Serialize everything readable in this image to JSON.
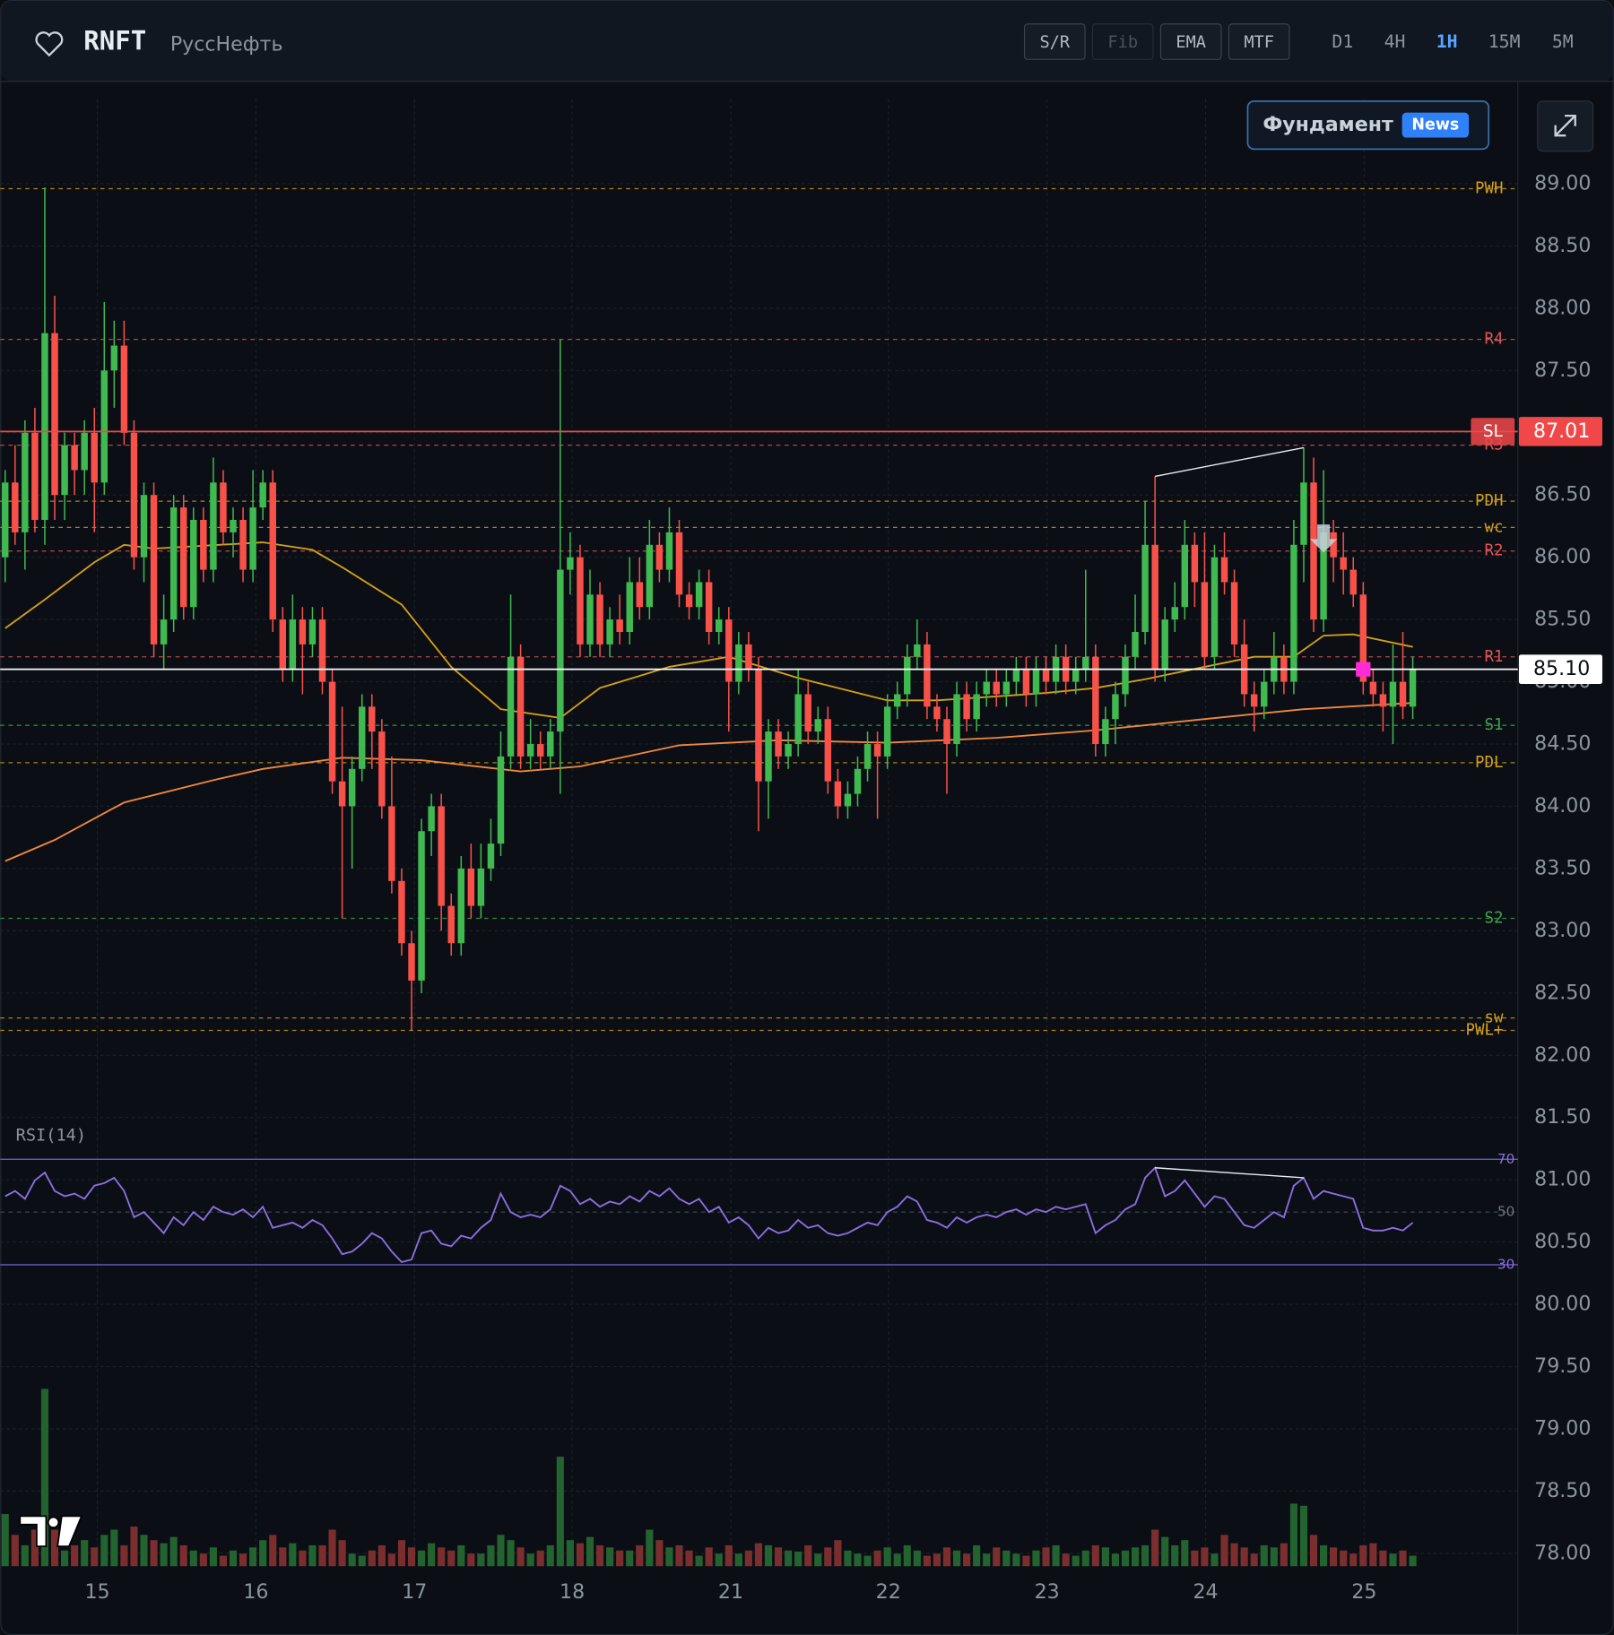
{
  "header": {
    "symbol": "RNFT",
    "name": "РуссНефть",
    "tools": [
      "S/R",
      "Fib",
      "EMA",
      "MTF"
    ],
    "disabled_tools": [
      "Fib"
    ],
    "timeframes": [
      "D1",
      "4H",
      "1H",
      "15M",
      "5M"
    ],
    "active_timeframe": "1H",
    "fundament": {
      "label": "Фундамент",
      "badge": "News"
    }
  },
  "chart_data": {
    "type": "candlestick",
    "xlim": [
      -0.5,
      152.6
    ],
    "xticks": [
      {
        "value": 9.3,
        "label": "15"
      },
      {
        "value": 25.3,
        "label": "16"
      },
      {
        "value": 41.3,
        "label": "17"
      },
      {
        "value": 57.2,
        "label": "18"
      },
      {
        "value": 73.2,
        "label": "21"
      },
      {
        "value": 89.1,
        "label": "22"
      },
      {
        "value": 105.1,
        "label": "23"
      },
      {
        "value": 121.1,
        "label": "24"
      },
      {
        "value": 137.1,
        "label": "25"
      }
    ],
    "ylim": [
      77.88,
      89.68
    ],
    "yticks": [
      {
        "value": 78,
        "label": "78.00"
      },
      {
        "value": 78.5,
        "label": "78.50"
      },
      {
        "value": 79,
        "label": "79.00"
      },
      {
        "value": 79.5,
        "label": "79.50"
      },
      {
        "value": 80,
        "label": "80.00"
      },
      {
        "value": 80.5,
        "label": "80.50"
      },
      {
        "value": 81,
        "label": "81.00"
      },
      {
        "value": 81.5,
        "label": "81.50"
      },
      {
        "value": 82,
        "label": "82.00"
      },
      {
        "value": 82.5,
        "label": "82.50"
      },
      {
        "value": 83,
        "label": "83.00"
      },
      {
        "value": 83.5,
        "label": "83.50"
      },
      {
        "value": 84,
        "label": "84.00"
      },
      {
        "value": 84.5,
        "label": "84.50"
      },
      {
        "value": 85,
        "label": "85.00"
      },
      {
        "value": 85.5,
        "label": "85.50"
      },
      {
        "value": 86,
        "label": "86.00"
      },
      {
        "value": 86.5,
        "label": "86.50"
      },
      {
        "value": 87,
        "label": "87.00"
      },
      {
        "value": 87.5,
        "label": "87.50"
      },
      {
        "value": 88,
        "label": "88.00"
      },
      {
        "value": 88.5,
        "label": "88.50"
      },
      {
        "value": 89,
        "label": "89.00"
      }
    ],
    "grid": true,
    "up_color": "#3fb950",
    "down_color": "#f85149",
    "ohlc": [
      [
        86.0,
        86.7,
        85.8,
        86.6
      ],
      [
        86.6,
        86.9,
        86.1,
        86.2
      ],
      [
        86.2,
        87.1,
        85.9,
        87.0
      ],
      [
        87.0,
        87.2,
        86.2,
        86.3
      ],
      [
        86.3,
        88.97,
        86.1,
        87.8
      ],
      [
        87.8,
        88.1,
        86.3,
        86.5
      ],
      [
        86.5,
        87.0,
        86.3,
        86.9
      ],
      [
        86.9,
        87.0,
        86.5,
        86.7
      ],
      [
        86.7,
        87.1,
        86.5,
        87.0
      ],
      [
        87.0,
        87.2,
        86.2,
        86.6
      ],
      [
        86.6,
        88.05,
        86.5,
        87.5
      ],
      [
        87.5,
        87.9,
        87.2,
        87.7
      ],
      [
        87.7,
        87.9,
        86.9,
        87.0
      ],
      [
        87.0,
        87.1,
        85.9,
        86.0
      ],
      [
        86.0,
        86.6,
        85.8,
        86.5
      ],
      [
        86.5,
        86.6,
        85.2,
        85.3
      ],
      [
        85.3,
        85.7,
        85.1,
        85.5
      ],
      [
        85.5,
        86.5,
        85.4,
        86.4
      ],
      [
        86.4,
        86.5,
        85.5,
        85.6
      ],
      [
        85.6,
        86.4,
        85.5,
        86.3
      ],
      [
        86.3,
        86.4,
        85.8,
        85.9
      ],
      [
        85.9,
        86.8,
        85.8,
        86.6
      ],
      [
        86.6,
        86.7,
        86.1,
        86.2
      ],
      [
        86.2,
        86.4,
        86.0,
        86.3
      ],
      [
        86.3,
        86.4,
        85.8,
        85.9
      ],
      [
        85.9,
        86.7,
        85.8,
        86.4
      ],
      [
        86.4,
        86.7,
        86.3,
        86.6
      ],
      [
        86.6,
        86.7,
        85.4,
        85.5
      ],
      [
        85.5,
        85.6,
        85.0,
        85.1
      ],
      [
        85.1,
        85.7,
        85.0,
        85.5
      ],
      [
        85.5,
        85.6,
        84.9,
        85.3
      ],
      [
        85.3,
        85.6,
        85.2,
        85.5
      ],
      [
        85.5,
        85.6,
        84.9,
        85.0
      ],
      [
        85.0,
        85.1,
        84.1,
        84.2
      ],
      [
        84.2,
        84.8,
        83.1,
        84.0
      ],
      [
        84.0,
        84.4,
        83.5,
        84.3
      ],
      [
        84.3,
        84.9,
        84.2,
        84.8
      ],
      [
        84.8,
        84.9,
        84.3,
        84.6
      ],
      [
        84.6,
        84.7,
        83.9,
        84.0
      ],
      [
        84.0,
        84.4,
        83.3,
        83.4
      ],
      [
        83.4,
        83.5,
        82.8,
        82.9
      ],
      [
        82.9,
        83.0,
        82.2,
        82.6
      ],
      [
        82.6,
        83.9,
        82.5,
        83.8
      ],
      [
        83.8,
        84.1,
        83.6,
        84.0
      ],
      [
        84.0,
        84.1,
        83.0,
        83.2
      ],
      [
        83.2,
        83.3,
        82.8,
        82.9
      ],
      [
        82.9,
        83.6,
        82.8,
        83.5
      ],
      [
        83.5,
        83.7,
        83.1,
        83.2
      ],
      [
        83.2,
        83.7,
        83.1,
        83.5
      ],
      [
        83.5,
        83.9,
        83.4,
        83.7
      ],
      [
        83.7,
        84.6,
        83.6,
        84.4
      ],
      [
        84.4,
        85.7,
        84.3,
        85.2
      ],
      [
        85.2,
        85.3,
        84.3,
        84.4
      ],
      [
        84.4,
        84.7,
        84.3,
        84.5
      ],
      [
        84.5,
        84.6,
        84.3,
        84.4
      ],
      [
        84.4,
        84.7,
        84.3,
        84.6
      ],
      [
        84.6,
        87.75,
        84.1,
        85.9
      ],
      [
        85.9,
        86.2,
        85.7,
        86.0
      ],
      [
        86.0,
        86.1,
        85.2,
        85.3
      ],
      [
        85.3,
        85.9,
        85.2,
        85.7
      ],
      [
        85.7,
        85.8,
        85.2,
        85.3
      ],
      [
        85.3,
        85.6,
        85.2,
        85.5
      ],
      [
        85.5,
        85.7,
        85.3,
        85.4
      ],
      [
        85.4,
        86.0,
        85.3,
        85.8
      ],
      [
        85.8,
        86.0,
        85.5,
        85.6
      ],
      [
        85.6,
        86.3,
        85.5,
        86.1
      ],
      [
        86.1,
        86.2,
        85.8,
        85.9
      ],
      [
        85.9,
        86.4,
        85.8,
        86.2
      ],
      [
        86.2,
        86.3,
        85.6,
        85.7
      ],
      [
        85.7,
        85.8,
        85.5,
        85.6
      ],
      [
        85.6,
        85.9,
        85.5,
        85.8
      ],
      [
        85.8,
        85.9,
        85.3,
        85.4
      ],
      [
        85.4,
        85.6,
        85.3,
        85.5
      ],
      [
        85.5,
        85.6,
        84.6,
        85.0
      ],
      [
        85.0,
        85.4,
        84.9,
        85.3
      ],
      [
        85.3,
        85.4,
        85.0,
        85.1
      ],
      [
        85.1,
        85.2,
        83.8,
        84.2
      ],
      [
        84.2,
        84.7,
        83.9,
        84.6
      ],
      [
        84.6,
        84.7,
        84.3,
        84.4
      ],
      [
        84.4,
        84.6,
        84.3,
        84.5
      ],
      [
        84.5,
        85.1,
        84.4,
        84.9
      ],
      [
        84.9,
        85.0,
        84.5,
        84.6
      ],
      [
        84.6,
        84.8,
        84.5,
        84.7
      ],
      [
        84.7,
        84.8,
        84.1,
        84.2
      ],
      [
        84.2,
        84.3,
        83.9,
        84.0
      ],
      [
        84.0,
        84.2,
        83.9,
        84.1
      ],
      [
        84.1,
        84.4,
        84.0,
        84.3
      ],
      [
        84.3,
        84.6,
        84.2,
        84.5
      ],
      [
        84.5,
        84.6,
        83.9,
        84.4
      ],
      [
        84.4,
        84.9,
        84.3,
        84.8
      ],
      [
        84.8,
        85.0,
        84.7,
        84.9
      ],
      [
        84.9,
        85.3,
        84.8,
        85.2
      ],
      [
        85.2,
        85.5,
        85.1,
        85.3
      ],
      [
        85.3,
        85.4,
        84.7,
        84.8
      ],
      [
        84.8,
        84.9,
        84.6,
        84.7
      ],
      [
        84.7,
        84.8,
        84.1,
        84.5
      ],
      [
        84.5,
        85.0,
        84.4,
        84.9
      ],
      [
        84.9,
        85.0,
        84.6,
        84.7
      ],
      [
        84.7,
        85.0,
        84.6,
        84.9
      ],
      [
        84.9,
        85.1,
        84.8,
        85.0
      ],
      [
        85.0,
        85.1,
        84.8,
        84.9
      ],
      [
        84.9,
        85.1,
        84.8,
        85.0
      ],
      [
        85.0,
        85.2,
        84.9,
        85.1
      ],
      [
        85.1,
        85.2,
        84.8,
        84.9
      ],
      [
        84.9,
        85.2,
        84.8,
        85.1
      ],
      [
        85.1,
        85.2,
        84.9,
        85.0
      ],
      [
        85.0,
        85.3,
        84.9,
        85.2
      ],
      [
        85.2,
        85.3,
        84.9,
        85.0
      ],
      [
        85.0,
        85.2,
        84.9,
        85.1
      ],
      [
        85.1,
        85.9,
        85.0,
        85.2
      ],
      [
        85.2,
        85.3,
        84.4,
        84.5
      ],
      [
        84.5,
        84.8,
        84.4,
        84.7
      ],
      [
        84.7,
        85.0,
        84.5,
        84.9
      ],
      [
        84.9,
        85.3,
        84.8,
        85.2
      ],
      [
        85.2,
        85.7,
        85.1,
        85.4
      ],
      [
        85.4,
        86.45,
        85.3,
        86.1
      ],
      [
        86.1,
        86.65,
        85.0,
        85.1
      ],
      [
        85.1,
        85.6,
        85.0,
        85.5
      ],
      [
        85.5,
        85.8,
        85.4,
        85.6
      ],
      [
        85.6,
        86.3,
        85.5,
        86.1
      ],
      [
        86.1,
        86.2,
        85.6,
        85.8
      ],
      [
        85.8,
        86.2,
        85.1,
        85.2
      ],
      [
        85.2,
        86.1,
        85.1,
        86.0
      ],
      [
        86.0,
        86.2,
        85.7,
        85.8
      ],
      [
        85.8,
        85.9,
        85.2,
        85.3
      ],
      [
        85.3,
        85.5,
        84.8,
        84.9
      ],
      [
        84.9,
        85.0,
        84.6,
        84.8
      ],
      [
        84.8,
        85.1,
        84.7,
        85.0
      ],
      [
        85.0,
        85.4,
        84.9,
        85.2
      ],
      [
        85.2,
        85.3,
        84.9,
        85.0
      ],
      [
        85.0,
        86.3,
        84.9,
        86.1
      ],
      [
        86.1,
        86.88,
        85.8,
        86.6
      ],
      [
        86.6,
        86.8,
        85.4,
        85.5
      ],
      [
        85.5,
        86.7,
        85.4,
        86.2
      ],
      [
        86.2,
        86.3,
        85.8,
        86.0
      ],
      [
        86.0,
        86.2,
        85.7,
        85.9
      ],
      [
        85.9,
        86.0,
        85.6,
        85.7
      ],
      [
        85.7,
        85.8,
        84.9,
        85.0
      ],
      [
        85.0,
        85.1,
        84.8,
        84.9
      ],
      [
        84.9,
        85.0,
        84.6,
        84.8
      ],
      [
        84.8,
        85.3,
        84.5,
        85.0
      ],
      [
        85.0,
        85.4,
        84.7,
        84.8
      ],
      [
        84.8,
        85.2,
        84.7,
        85.1
      ]
    ],
    "volume": [
      50,
      30,
      20,
      35,
      170,
      35,
      15,
      20,
      25,
      18,
      30,
      35,
      20,
      38,
      30,
      25,
      22,
      28,
      20,
      15,
      12,
      18,
      10,
      15,
      12,
      18,
      25,
      30,
      18,
      22,
      15,
      20,
      20,
      35,
      25,
      12,
      10,
      15,
      20,
      12,
      25,
      18,
      15,
      22,
      18,
      15,
      20,
      12,
      12,
      20,
      30,
      25,
      18,
      12,
      15,
      20,
      105,
      25,
      22,
      28,
      20,
      18,
      15,
      15,
      20,
      35,
      25,
      18,
      20,
      15,
      10,
      18,
      12,
      20,
      12,
      15,
      22,
      20,
      18,
      15,
      14,
      20,
      12,
      18,
      25,
      15,
      12,
      10,
      15,
      18,
      12,
      20,
      15,
      10,
      12,
      18,
      15,
      12,
      20,
      12,
      18,
      15,
      12,
      10,
      15,
      18,
      20,
      12,
      10,
      15,
      20,
      18,
      12,
      15,
      18,
      20,
      35,
      28,
      20,
      25,
      15,
      18,
      12,
      30,
      22,
      18,
      12,
      20,
      18,
      22,
      60,
      58,
      30,
      20,
      18,
      15,
      12,
      20,
      22,
      15,
      12,
      15,
      10
    ],
    "ema": [
      {
        "color": "#d4a017",
        "x": [
          0,
          4,
          9,
          12,
          15,
          26,
          31,
          34,
          40,
          45,
          50,
          56,
          60,
          67,
          73,
          80,
          84,
          89,
          94,
          105,
          110,
          115,
          121,
          126,
          130,
          133,
          136,
          142
        ],
        "values": [
          85.43,
          85.66,
          85.96,
          86.1,
          86.07,
          86.12,
          86.06,
          85.92,
          85.62,
          85.12,
          84.78,
          84.71,
          84.95,
          85.12,
          85.2,
          85.03,
          84.95,
          84.85,
          84.85,
          84.91,
          84.95,
          85.02,
          85.12,
          85.2,
          85.2,
          85.37,
          85.38,
          85.28
        ]
      },
      {
        "color": "#f0883e",
        "x": [
          0,
          5,
          12,
          21,
          26,
          34,
          42,
          52,
          58,
          68,
          78,
          89,
          100,
          110,
          121,
          131,
          142
        ],
        "values": [
          83.56,
          83.73,
          84.03,
          84.21,
          84.3,
          84.39,
          84.37,
          84.28,
          84.32,
          84.49,
          84.53,
          84.51,
          84.55,
          84.61,
          84.7,
          84.78,
          84.83
        ]
      }
    ],
    "levels": [
      {
        "label": "PWH",
        "value": 88.96,
        "color": "#d4a017"
      },
      {
        "label": "R4",
        "value": 87.75,
        "color": "#e05555"
      },
      {
        "label": "R3",
        "value": 86.9,
        "color": "#e05555"
      },
      {
        "label": "PDH",
        "value": 86.45,
        "color": "#d4a017"
      },
      {
        "label": "wc",
        "value": 86.24,
        "color": "#d4a017"
      },
      {
        "label": "R2",
        "value": 86.05,
        "color": "#e05555"
      },
      {
        "label": "R1",
        "value": 85.2,
        "color": "#e05555"
      },
      {
        "label": "S1",
        "value": 84.65,
        "color": "#3fa34d"
      },
      {
        "label": "PDL",
        "value": 84.35,
        "color": "#d4a017"
      },
      {
        "label": "S2",
        "value": 83.1,
        "color": "#3fa34d"
      },
      {
        "label": "sw",
        "value": 82.3,
        "color": "#d4a017"
      },
      {
        "label": "PWL+",
        "value": 82.2,
        "color": "#d4a017"
      }
    ],
    "stop_loss": {
      "name": "SL",
      "value": 87.01,
      "label": "87.01",
      "color": "#f04848"
    },
    "last_price": {
      "value": 85.1,
      "label": "85.10"
    },
    "rsi_label": "RSI(14)",
    "rsi_lim": [
      0,
      100
    ],
    "rsi_ticks": [
      70,
      50,
      30
    ],
    "rsi_color": "#8b6fe0",
    "rsi": [
      56,
      58,
      55,
      62,
      65,
      58,
      56,
      57,
      55,
      60,
      61,
      63,
      58,
      48,
      50,
      46,
      42,
      48,
      45,
      50,
      47,
      52,
      50,
      49,
      51,
      48,
      52,
      44,
      45,
      46,
      44,
      47,
      45,
      40,
      34,
      35,
      38,
      42,
      40,
      35,
      31,
      32,
      42,
      43,
      38,
      37,
      41,
      40,
      44,
      47,
      57,
      50,
      48,
      49,
      48,
      51,
      60,
      58,
      53,
      55,
      52,
      54,
      53,
      56,
      54,
      58,
      56,
      59,
      55,
      53,
      55,
      50,
      52,
      46,
      48,
      45,
      40,
      44,
      42,
      43,
      47,
      44,
      45,
      42,
      41,
      42,
      44,
      46,
      45,
      50,
      52,
      56,
      54,
      47,
      46,
      44,
      48,
      46,
      48,
      49,
      48,
      50,
      51,
      49,
      51,
      50,
      52,
      51,
      52,
      53,
      42,
      45,
      47,
      51,
      53,
      63,
      66.8,
      56,
      58,
      62,
      57,
      52,
      56,
      55,
      50,
      45,
      44,
      47,
      50,
      48,
      60,
      63,
      55,
      58,
      57,
      56,
      55,
      44,
      43,
      43,
      44,
      43,
      46
    ]
  }
}
